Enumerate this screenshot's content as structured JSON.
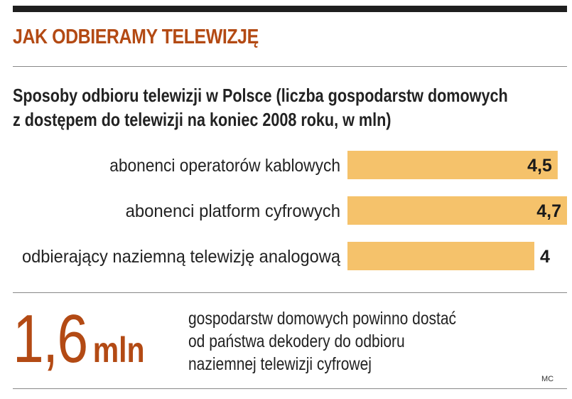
{
  "title": "JAK ODBIERAMY TELEWIZJĘ",
  "subtitle_lines": [
    "Sposoby odbioru telewizji w Polsce (liczba gospodarstw domowych",
    "z dostępem do telewizji na koniec 2008 roku, w mln)"
  ],
  "chart_data": {
    "type": "bar",
    "orientation": "horizontal",
    "categories": [
      "abonenci operatorów kablowych",
      "abonenci platform cyfrowych",
      "odbierający naziemną telewizję analogową"
    ],
    "values": [
      4.5,
      4.7,
      4.0
    ],
    "value_labels": [
      "4,5",
      "4,7",
      "4"
    ],
    "xlim": [
      0,
      4.7
    ],
    "grid": false,
    "bar_color": "#f5c26b"
  },
  "highlight": {
    "number": "1,6",
    "unit": "mln",
    "note_lines": [
      "gospodarstw domowych powinno dostać",
      "od państwa dekodery do odbioru",
      "naziemnej telewizji cyfrowej"
    ]
  },
  "credit": "MC",
  "colors": {
    "accent": "#b34a14",
    "bar": "#f5c26b",
    "rule": "#1f1f1f"
  }
}
